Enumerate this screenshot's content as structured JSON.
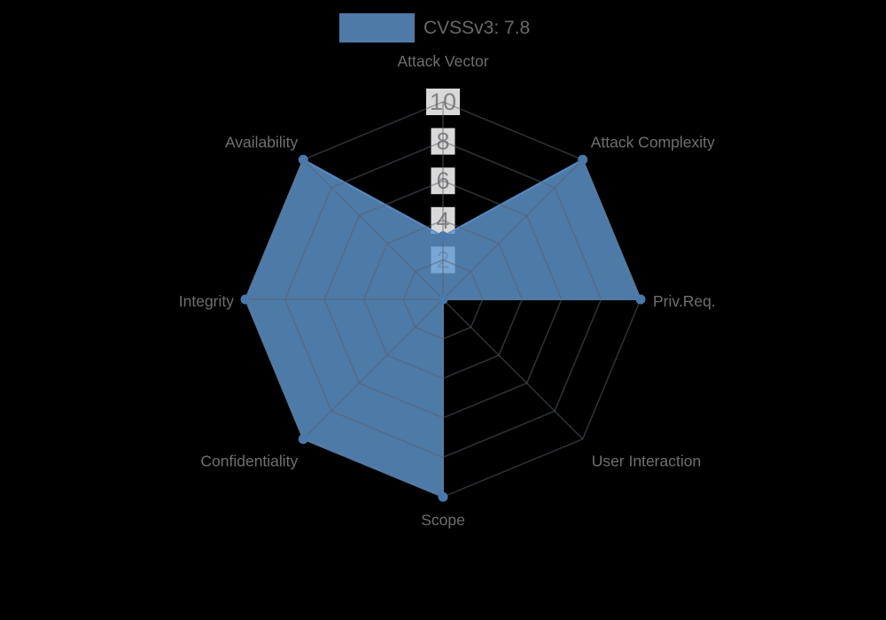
{
  "legend": {
    "label": "CVSSv3: 7.8"
  },
  "chart_data": {
    "type": "radar",
    "title": "CVSSv3: 7.8",
    "categories": [
      "Attack Vector",
      "Attack Complexity",
      "Priv.Req.",
      "User Interaction",
      "Scope",
      "Confidentiality",
      "Integrity",
      "Availability"
    ],
    "series": [
      {
        "name": "CVSSv3: 7.8",
        "values": [
          3.2,
          10,
          10,
          0,
          10,
          10,
          10,
          10
        ]
      }
    ],
    "radial_ticks": [
      2,
      4,
      6,
      8,
      10
    ],
    "rlim": [
      0,
      10
    ],
    "grid": true,
    "grid_shape": "polygon",
    "legend_position": "top",
    "colors": {
      "series_fill": "#6298d2",
      "series_fill_opacity": 0.8,
      "series_stroke": "#5b90c8",
      "marker": "#4a78ab",
      "grid_line": "#5a5f69",
      "grid_line_opacity": 0.5,
      "tick_box": "#ffffff",
      "tick_box_opacity": 0.85,
      "tick_text": "#828282",
      "axis_label_text": "#6f6f6f",
      "legend_text": "#696969",
      "background": "#000000"
    }
  }
}
